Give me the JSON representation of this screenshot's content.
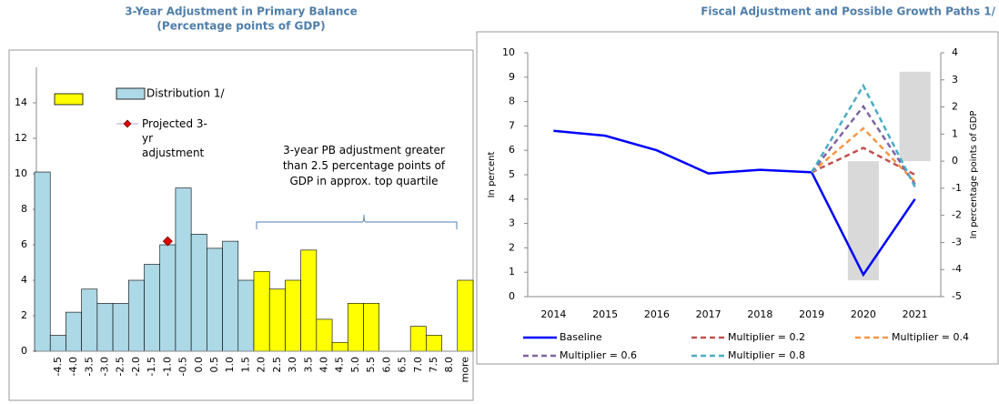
{
  "chart_data": [
    {
      "type": "bar",
      "title": "3-Year Adjustment in Primary Balance",
      "subtitle": "(Percentage points of GDP)",
      "annotation": "3-year PB adjustment greater than 2.5 percentage points of GDP in approx. top quartile",
      "categories": [
        null,
        "-4.5",
        "-4.0",
        "-3.5",
        "-3.0",
        "-2.5",
        "-2.0",
        "-1.5",
        "-1.0",
        "-0.5",
        "0.0",
        "0.5",
        "1.0",
        "1.5",
        "2.0",
        "2.5",
        "3.0",
        "3.5",
        "4.0",
        "4.5",
        "5.0",
        "5.5",
        "6.0",
        "6.5",
        "7.0",
        "7.5",
        "8.0",
        "more"
      ],
      "series": [
        {
          "name": "Distribution 1/",
          "color": "#add8e6",
          "values": [
            10.1,
            0.9,
            2.2,
            3.5,
            2.7,
            2.7,
            4.0,
            4.9,
            6.0,
            9.2,
            6.6,
            5.8,
            6.2,
            4.0,
            null,
            null,
            null,
            null,
            null,
            null,
            null,
            null,
            null,
            null,
            null,
            null,
            null,
            null
          ]
        },
        {
          "color": "#ffff00",
          "values": [
            null,
            null,
            null,
            null,
            null,
            null,
            null,
            null,
            null,
            null,
            null,
            null,
            null,
            null,
            4.5,
            3.5,
            4.0,
            5.7,
            1.8,
            0.5,
            2.7,
            2.7,
            0,
            0,
            1.4,
            0.9,
            0,
            4.0
          ]
        },
        {
          "name": "Projected 3-yr adjustment",
          "type": "scatter",
          "color": "#e00000",
          "values": [
            null,
            null,
            null,
            null,
            null,
            null,
            null,
            null,
            6.2,
            null,
            null,
            null,
            null,
            null,
            null,
            null,
            null,
            null,
            null,
            null,
            null,
            null,
            null,
            null,
            null,
            null,
            null,
            null
          ]
        }
      ],
      "ylim": [
        0,
        16
      ],
      "yticks": [
        0,
        2,
        4,
        6,
        8,
        10,
        12,
        14
      ]
    },
    {
      "type": "line",
      "title": "Fiscal Adjustment and Possible Growth Paths 1/",
      "y_label": "In percent",
      "y2_label": "In percentage points of GDP",
      "categories": [
        "2014",
        "2015",
        "2016",
        "2017",
        "2018",
        "2019",
        "2020",
        "2021"
      ],
      "series": [
        {
          "type": "bar",
          "axis": "y2",
          "color": "#d9d9d9",
          "values": [
            null,
            null,
            null,
            null,
            null,
            null,
            -4.4,
            3.3
          ]
        },
        {
          "name": "Baseline",
          "color": "#0000ff",
          "values": [
            6.8,
            6.6,
            6.0,
            5.05,
            5.2,
            5.1,
            0.9,
            4.0
          ]
        },
        {
          "name": "Multiplier = 0.2",
          "color": "#c0504d",
          "dashed": true,
          "values": [
            null,
            null,
            null,
            null,
            null,
            5.1,
            6.1,
            5.0
          ]
        },
        {
          "name": "Multiplier = 0.4",
          "color": "#f79646",
          "dashed": true,
          "values": [
            null,
            null,
            null,
            null,
            null,
            5.1,
            6.9,
            4.7
          ]
        },
        {
          "name": "Multiplier = 0.6",
          "color": "#8064a2",
          "dashed": true,
          "values": [
            null,
            null,
            null,
            null,
            null,
            5.1,
            7.8,
            4.6
          ]
        },
        {
          "name": "Multiplier = 0.8",
          "color": "#4bacc6",
          "dashed": true,
          "values": [
            null,
            null,
            null,
            null,
            null,
            5.1,
            8.65,
            4.5
          ]
        }
      ],
      "ylim": [
        0,
        10
      ],
      "yticks": [
        0,
        1,
        2,
        3,
        4,
        5,
        6,
        7,
        8,
        9,
        10
      ],
      "y2lim": [
        -5,
        4
      ],
      "y2ticks": [
        -5,
        -4,
        -3,
        -2,
        -1,
        0,
        1,
        2,
        3,
        4
      ]
    }
  ]
}
